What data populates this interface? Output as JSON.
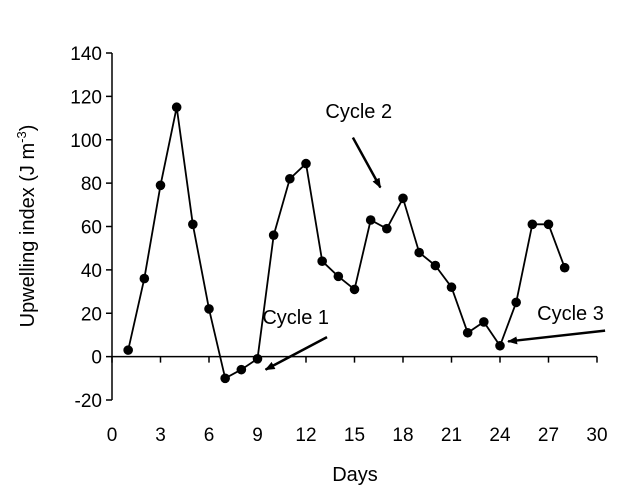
{
  "chart_data": {
    "type": "line",
    "xlabel": "Days",
    "ylabel": "Upwelling index (J m",
    "ylabel_sup": "-3",
    "ylabel_close": ")",
    "xlim": [
      0,
      30
    ],
    "ylim": [
      -20,
      140
    ],
    "xticks": [
      "0",
      "3",
      "6",
      "9",
      "12",
      "15",
      "18",
      "21",
      "24",
      "27",
      "30"
    ],
    "yticks": [
      "-20",
      "0",
      "20",
      "40",
      "60",
      "80",
      "100",
      "120",
      "140"
    ],
    "grid": false,
    "series": [
      {
        "x": [
          1,
          2,
          3,
          4,
          5,
          6,
          7,
          8,
          9,
          10,
          11,
          12,
          13,
          14,
          15,
          16,
          17,
          18,
          19,
          20,
          21,
          22,
          23,
          24,
          25,
          26,
          27,
          28
        ],
        "y": [
          3,
          36,
          79,
          115,
          61,
          22,
          -10,
          -6,
          -1,
          56,
          82,
          89,
          44,
          37,
          31,
          63,
          59,
          73,
          48,
          42,
          32,
          11,
          16,
          5,
          25,
          61,
          61,
          41
        ],
        "color": "#000000"
      }
    ],
    "annotations": [
      {
        "text": "Cycle 1",
        "label_x": 9.3,
        "label_y": 15,
        "arrow_from": [
          13.3,
          9
        ],
        "arrow_to": [
          9.5,
          -6
        ]
      },
      {
        "text": "Cycle 2",
        "label_x": 13.2,
        "label_y": 110,
        "arrow_from": [
          14.9,
          101
        ],
        "arrow_to": [
          16.6,
          78
        ]
      },
      {
        "text": "Cycle 3",
        "label_x": 26.3,
        "label_y": 17,
        "arrow_from": [
          30.5,
          12
        ],
        "arrow_to": [
          24.5,
          7
        ]
      }
    ]
  }
}
